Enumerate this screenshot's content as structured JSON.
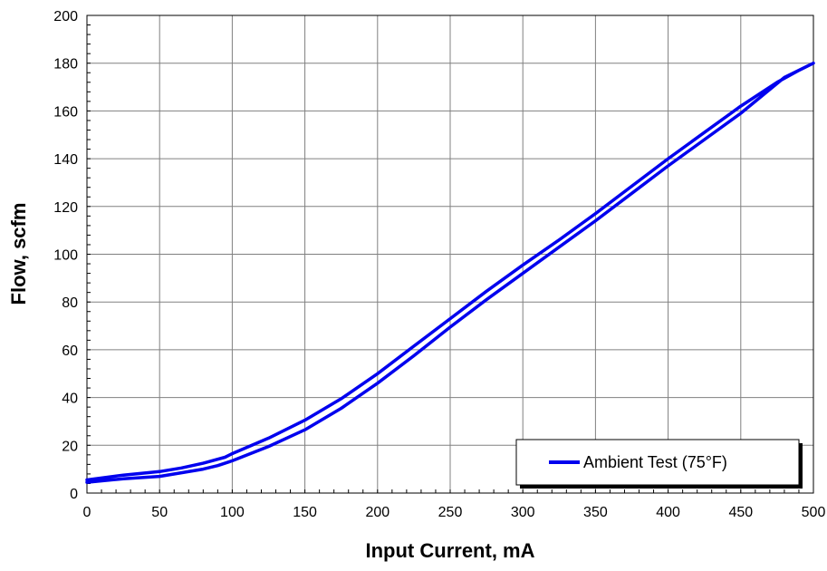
{
  "chart_data": {
    "type": "line",
    "title": "",
    "xlabel": "Input Current, mA",
    "ylabel": "Flow, scfm",
    "xlim": [
      0,
      500
    ],
    "ylim": [
      0,
      200
    ],
    "xticks": [
      "0",
      "50",
      "100",
      "150",
      "200",
      "250",
      "300",
      "350",
      "400",
      "450",
      "500"
    ],
    "yticks": [
      "0",
      "20",
      "40",
      "60",
      "80",
      "100",
      "120",
      "140",
      "160",
      "180",
      "200"
    ],
    "grid": true,
    "legend_position": "bottom-right",
    "series_color": "#0000ee",
    "series": [
      {
        "name": "Ambient Test (75°F)",
        "x": [
          0,
          25,
          50,
          65,
          80,
          95,
          100,
          125,
          150,
          175,
          200,
          225,
          250,
          275,
          300,
          325,
          350,
          375,
          400,
          425,
          450,
          475,
          490,
          500,
          500,
          480,
          450,
          425,
          400,
          375,
          350,
          325,
          300,
          275,
          250,
          225,
          200,
          175,
          150,
          125,
          100,
          90,
          80,
          65,
          50,
          25,
          0
        ],
        "y": [
          5.5,
          7.5,
          9.0,
          10.5,
          12.5,
          15.0,
          16.5,
          23.0,
          30.5,
          39.5,
          50.0,
          61.5,
          73.0,
          84.5,
          95.5,
          106.0,
          117.0,
          128.5,
          140.0,
          151.0,
          162.0,
          172.0,
          177.0,
          180.0,
          180.0,
          174.0,
          159.0,
          148.0,
          137.0,
          125.5,
          114.0,
          103.0,
          92.0,
          81.0,
          69.5,
          57.5,
          46.0,
          35.5,
          26.5,
          19.5,
          13.5,
          11.5,
          10.0,
          8.5,
          7.0,
          6.0,
          4.5
        ]
      }
    ]
  }
}
